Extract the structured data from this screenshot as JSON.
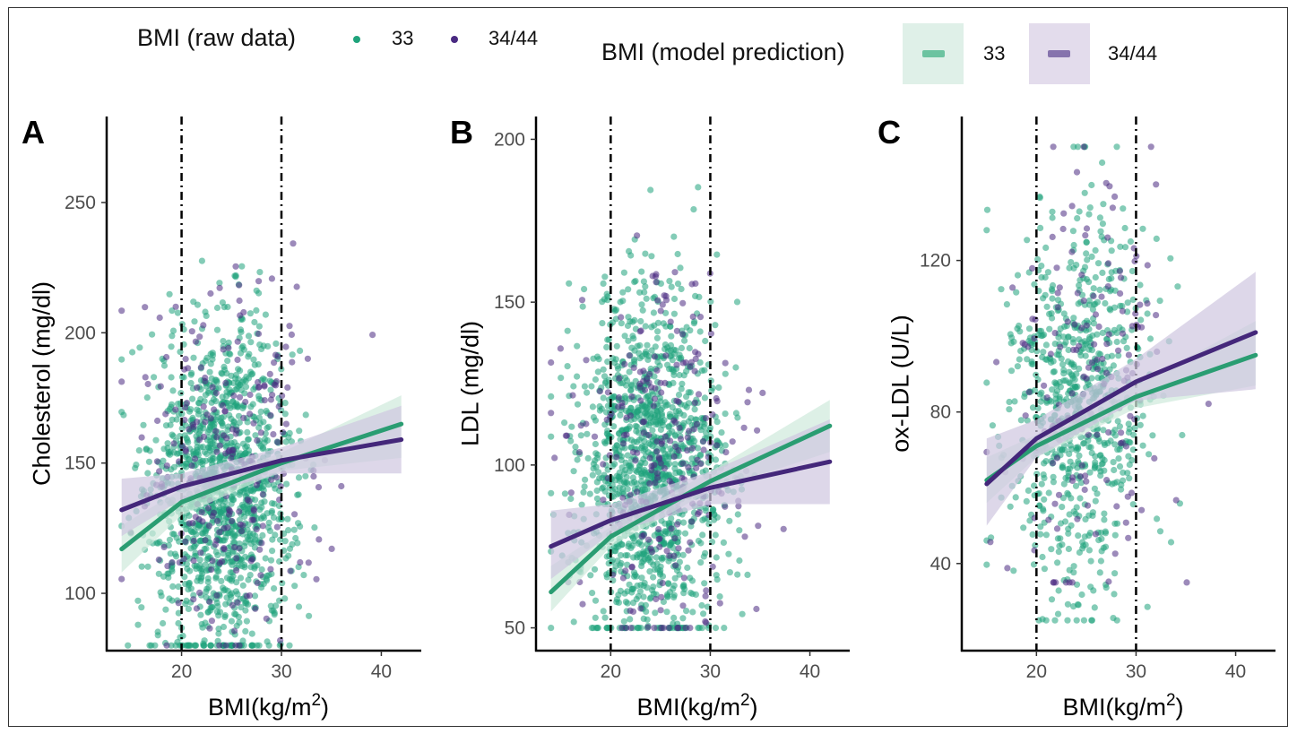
{
  "legend": {
    "raw_title": "BMI (raw data)",
    "model_title": "BMI (model prediction)",
    "raw_items": [
      {
        "label": "33",
        "color": "#1fa37b"
      },
      {
        "label": "34/44",
        "color": "#4a2a82"
      }
    ],
    "model_items": [
      {
        "label": "33",
        "color": "#6cc3a0",
        "band": "#dff0e8"
      },
      {
        "label": "34/44",
        "color": "#8673ad",
        "band": "#e3dcec"
      }
    ]
  },
  "colors": {
    "g33_point": "#1fa37b",
    "g3444_point": "#4a2a82",
    "g33_line": "#2a9d72",
    "g3444_line": "#44277a",
    "g33_band": "#cfe9dc",
    "g3444_band": "#cfc6e0"
  },
  "chart_data": [
    {
      "panel": "A",
      "type": "scatter",
      "xlabel": "BMI(kg/m",
      "xlabel_sup": "2",
      "xlabel_close": ")",
      "ylabel": "Cholesterol (mg/dl)",
      "xlim": [
        12.5,
        44
      ],
      "ylim": [
        78,
        283
      ],
      "xticks": [
        20,
        30,
        40
      ],
      "yticks": [
        100,
        150,
        200,
        250
      ],
      "vlines": [
        20,
        30
      ],
      "grid": false,
      "clouds": {
        "g33": {
          "n": 1300,
          "xc": 24.0,
          "xs": 3.6,
          "yc": 140,
          "ys": 32,
          "xmin": 14,
          "xmax": 42,
          "ymin": 80,
          "ymax": 280
        },
        "g3444": {
          "n": 260,
          "xc": 25.0,
          "xs": 4.5,
          "yc": 148,
          "ys": 36,
          "xmin": 14,
          "xmax": 42,
          "ymin": 80,
          "ymax": 262
        }
      },
      "fits": [
        {
          "series": "33",
          "x": [
            14,
            20,
            30,
            42
          ],
          "y": [
            117,
            135,
            150,
            165
          ],
          "lo": [
            108,
            130,
            147,
            152
          ],
          "hi": [
            126,
            140,
            154,
            176
          ]
        },
        {
          "series": "34/44",
          "x": [
            14,
            20,
            30,
            42
          ],
          "y": [
            132,
            141,
            151,
            159
          ],
          "lo": [
            122,
            136,
            146,
            146
          ],
          "hi": [
            144,
            146,
            156,
            172
          ]
        }
      ]
    },
    {
      "panel": "B",
      "type": "scatter",
      "xlabel": "BMI(kg/m",
      "xlabel_sup": "2",
      "xlabel_close": ")",
      "ylabel": "LDL (mg/dl)",
      "xlim": [
        12.5,
        44
      ],
      "ylim": [
        43,
        207
      ],
      "xticks": [
        20,
        30,
        40
      ],
      "yticks": [
        50,
        100,
        150,
        200
      ],
      "vlines": [
        20,
        30
      ],
      "grid": false,
      "clouds": {
        "g33": {
          "n": 1300,
          "xc": 24.0,
          "xs": 3.6,
          "yc": 98,
          "ys": 27,
          "xmin": 14,
          "xmax": 42,
          "ymin": 50,
          "ymax": 190
        },
        "g3444": {
          "n": 260,
          "xc": 25.0,
          "xs": 4.5,
          "yc": 103,
          "ys": 30,
          "xmin": 14,
          "xmax": 42,
          "ymin": 50,
          "ymax": 198
        }
      },
      "fits": [
        {
          "series": "33",
          "x": [
            14,
            20,
            30,
            42
          ],
          "y": [
            61,
            78,
            95,
            112
          ],
          "lo": [
            55,
            75,
            92,
            104
          ],
          "hi": [
            69,
            81,
            98,
            120
          ]
        },
        {
          "series": "34/44",
          "x": [
            14,
            20,
            30,
            42
          ],
          "y": [
            75,
            83,
            93,
            101
          ],
          "lo": [
            65,
            79,
            88,
            88
          ],
          "hi": [
            86,
            88,
            98,
            114
          ]
        }
      ]
    },
    {
      "panel": "C",
      "type": "scatter",
      "xlabel": "BMI(kg/m",
      "xlabel_sup": "2",
      "xlabel_close": ")",
      "ylabel": "ox-LDL  (U/L)",
      "xlim": [
        12.5,
        44
      ],
      "ylim": [
        17,
        158
      ],
      "xticks": [
        20,
        30,
        40
      ],
      "yticks": [
        40,
        80,
        120
      ],
      "vlines": [
        20,
        30
      ],
      "grid": false,
      "clouds": {
        "g33": {
          "n": 750,
          "xc": 24.0,
          "xs": 3.6,
          "yc": 82,
          "ys": 26,
          "xmin": 15,
          "xmax": 42,
          "ymin": 25,
          "ymax": 150
        },
        "g3444": {
          "n": 160,
          "xc": 25.0,
          "xs": 4.5,
          "yc": 88,
          "ys": 30,
          "xmin": 15,
          "xmax": 42,
          "ymin": 35,
          "ymax": 150
        }
      },
      "fits": [
        {
          "series": "33",
          "x": [
            15,
            20,
            30,
            42
          ],
          "y": [
            62,
            71,
            84,
            95
          ],
          "lo": [
            56,
            68,
            81,
            87
          ],
          "hi": [
            68,
            74,
            87,
            104
          ]
        },
        {
          "series": "34/44",
          "x": [
            15,
            20,
            30,
            42
          ],
          "y": [
            61,
            73,
            88,
            101
          ],
          "lo": [
            50,
            68,
            83,
            86
          ],
          "hi": [
            73,
            78,
            94,
            117
          ]
        }
      ]
    }
  ]
}
